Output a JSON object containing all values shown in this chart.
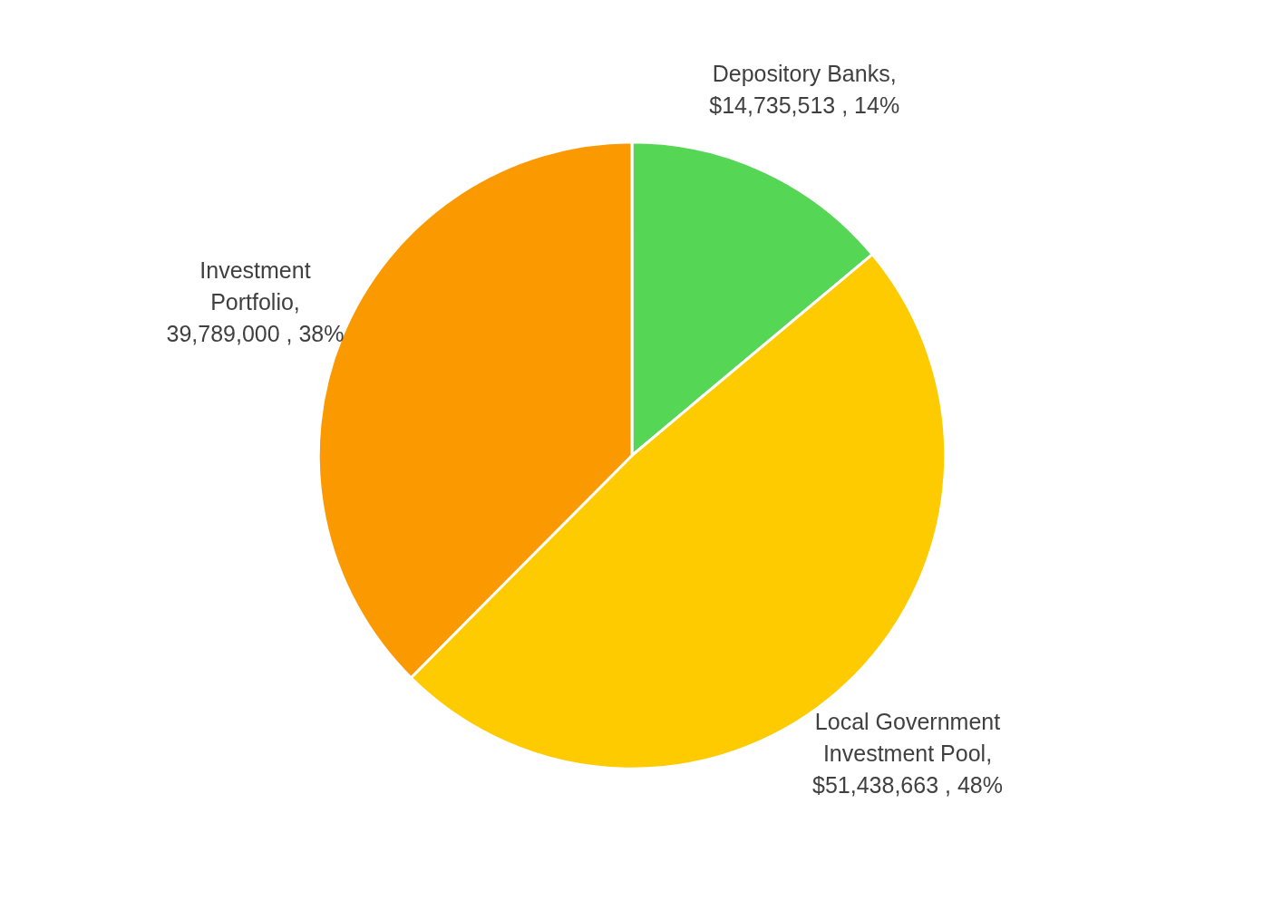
{
  "chart_data": {
    "type": "pie",
    "categories": [
      "Depository Banks",
      "Local Government Investment Pool",
      "Investment Portfolio"
    ],
    "values": [
      14735513,
      51438663,
      39789000
    ],
    "value_labels": [
      ", $14,735,513 , 14%",
      ", $51,438,663 , 48%",
      ", 39,789,000 , 38%"
    ],
    "colors": [
      "#55d655",
      "#fecb00",
      "#fb9a00"
    ],
    "legend": false
  }
}
